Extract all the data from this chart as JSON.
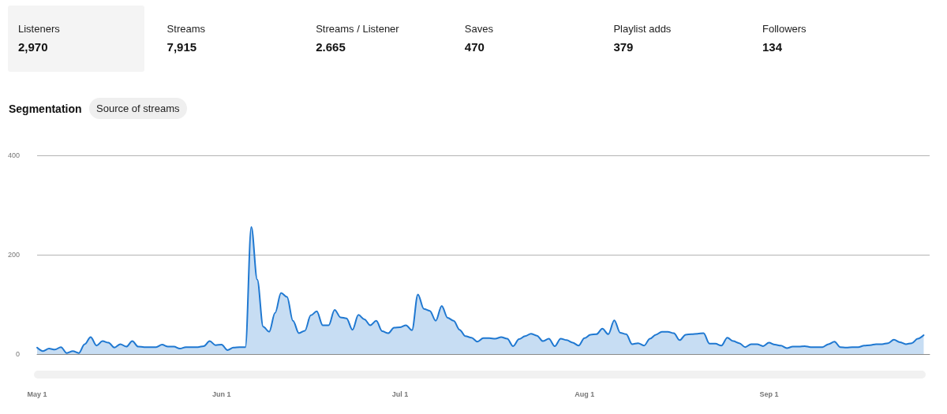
{
  "chart_data": [
    {
      "type": "other",
      "categories": [
        "Listeners",
        "Streams",
        "Streams / Listener",
        "Saves",
        "Playlist adds",
        "Followers"
      ],
      "value_labels": [
        "2,970",
        "7,915",
        "2.665",
        "470",
        "379",
        "134"
      ]
    },
    {
      "type": "area",
      "title": "Segmentation",
      "subtitle": "Source of streams",
      "color": "#1f78d1",
      "grid": "y",
      "marker": "none",
      "line_style": "solid",
      "x": [
        "--05-01",
        "--05-02",
        "--05-03",
        "--05-04",
        "--05-05",
        "--05-06",
        "--05-07",
        "--05-08",
        "--05-09",
        "--05-10",
        "--05-11",
        "--05-12",
        "--05-13",
        "--05-14",
        "--05-15",
        "--05-16",
        "--05-17",
        "--05-18",
        "--05-19",
        "--05-20",
        "--05-21",
        "--05-22",
        "--05-23",
        "--05-24",
        "--05-25",
        "--05-26",
        "--05-27",
        "--05-28",
        "--05-29",
        "--05-30",
        "--05-31",
        "--06-01",
        "--06-02",
        "--06-03",
        "--06-04",
        "--06-05",
        "--06-06",
        "--06-07",
        "--06-08",
        "--06-09",
        "--06-10",
        "--06-11",
        "--06-12",
        "--06-13",
        "--06-14",
        "--06-15",
        "--06-16",
        "--06-17",
        "--06-18",
        "--06-19",
        "--06-20",
        "--06-21",
        "--06-22",
        "--06-23",
        "--06-24",
        "--06-25",
        "--06-26",
        "--06-27",
        "--06-28",
        "--06-29",
        "--06-30",
        "--07-01",
        "--07-02",
        "--07-03",
        "--07-04",
        "--07-05",
        "--07-06",
        "--07-07",
        "--07-08",
        "--07-09",
        "--07-10",
        "--07-11",
        "--07-12",
        "--07-13",
        "--07-14",
        "--07-15",
        "--07-16",
        "--07-17",
        "--07-18",
        "--07-19",
        "--07-20",
        "--07-21",
        "--07-22",
        "--07-23",
        "--07-24",
        "--07-25",
        "--07-26",
        "--07-27",
        "--07-28",
        "--07-29",
        "--07-30",
        "--07-31",
        "--08-01",
        "--08-02",
        "--08-03",
        "--08-04",
        "--08-05",
        "--08-06",
        "--08-07",
        "--08-08",
        "--08-09",
        "--08-10",
        "--08-11",
        "--08-12",
        "--08-13",
        "--08-14",
        "--08-15",
        "--08-16",
        "--08-17",
        "--08-18",
        "--08-19",
        "--08-20",
        "--08-21",
        "--08-22",
        "--08-23",
        "--08-24",
        "--08-25",
        "--08-26",
        "--08-27",
        "--08-28",
        "--08-29",
        "--08-30",
        "--08-31",
        "--09-01",
        "--09-02",
        "--09-03",
        "--09-04",
        "--09-05",
        "--09-06",
        "--09-07",
        "--09-08",
        "--09-09",
        "--09-10",
        "--09-11",
        "--09-12",
        "--09-13",
        "--09-14",
        "--09-15",
        "--09-16",
        "--09-17",
        "--09-18",
        "--09-19",
        "--09-20",
        "--09-21",
        "--09-22",
        "--09-23",
        "--09-24",
        "--09-25",
        "--09-26",
        "--09-27"
      ],
      "values": [
        13,
        6,
        11,
        9,
        14,
        2,
        6,
        2,
        20,
        34,
        17,
        26,
        23,
        13,
        20,
        15,
        26,
        15,
        14,
        14,
        14,
        19,
        15,
        15,
        11,
        14,
        14,
        14,
        16,
        26,
        18,
        19,
        8,
        13,
        14,
        14,
        256,
        150,
        55,
        45,
        83,
        123,
        115,
        67,
        42,
        47,
        78,
        86,
        58,
        58,
        89,
        74,
        72,
        49,
        79,
        70,
        58,
        67,
        46,
        42,
        53,
        54,
        58,
        48,
        120,
        91,
        87,
        67,
        97,
        73,
        67,
        49,
        36,
        33,
        25,
        32,
        32,
        31,
        34,
        31,
        16,
        30,
        36,
        41,
        37,
        26,
        31,
        16,
        31,
        28,
        23,
        17,
        32,
        39,
        40,
        51,
        40,
        68,
        43,
        40,
        20,
        22,
        17,
        31,
        39,
        45,
        45,
        42,
        28,
        39,
        40,
        41,
        42,
        21,
        21,
        17,
        33,
        26,
        22,
        14,
        20,
        20,
        16,
        23,
        19,
        17,
        12,
        15,
        15,
        16,
        14,
        14,
        14,
        20,
        25,
        14,
        13,
        14,
        14,
        17,
        18,
        20,
        20,
        22,
        29,
        24,
        20,
        22,
        31,
        38
      ],
      "xlim": [
        "--05-01",
        "--09-28"
      ],
      "xticks": [
        {
          "value": "--05-01",
          "label": "May 1"
        },
        {
          "value": "--06-01",
          "label": "Jun 1"
        },
        {
          "value": "--07-01",
          "label": "Jul 1"
        },
        {
          "value": "--08-01",
          "label": "Aug 1"
        },
        {
          "value": "--09-01",
          "label": "Sep 1"
        }
      ],
      "ylim": [
        0,
        400
      ],
      "yticks": [
        0,
        200,
        400
      ]
    }
  ]
}
